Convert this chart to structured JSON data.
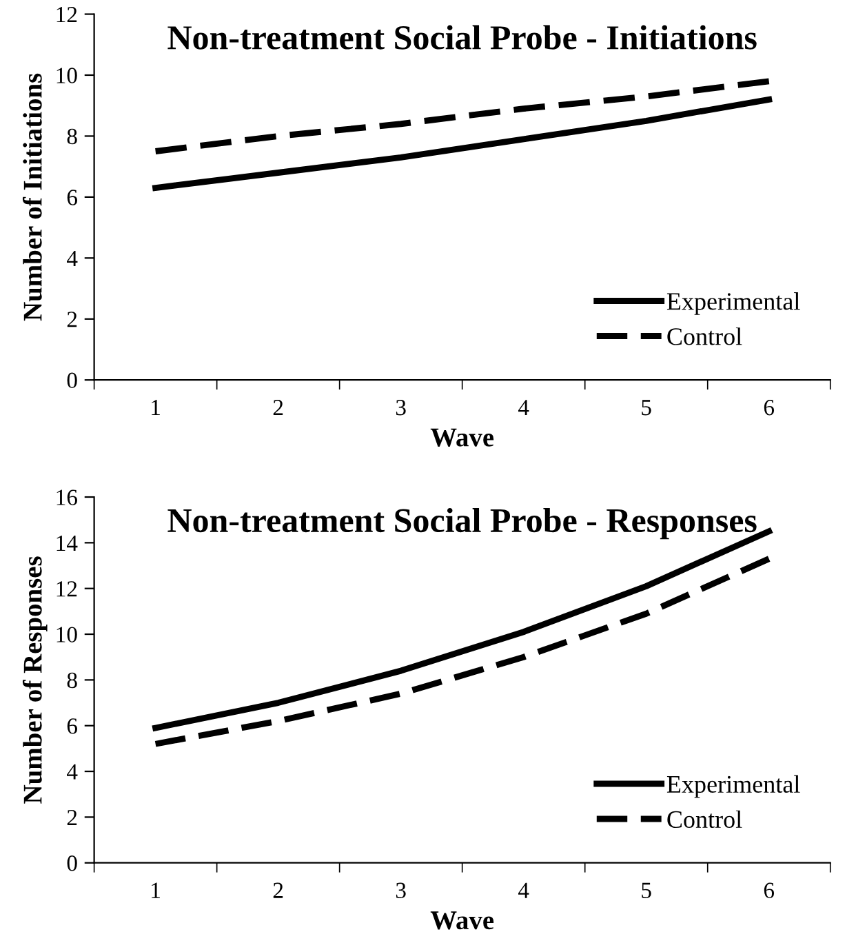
{
  "chart_data": [
    {
      "type": "line",
      "title": "Non-treatment Social Probe - Initiations",
      "xlabel": "Wave",
      "ylabel": "Number of Initiations",
      "categories": [
        "1",
        "2",
        "3",
        "4",
        "5",
        "6"
      ],
      "series": [
        {
          "name": "Experimental",
          "color": "#000000",
          "line_style": "solid",
          "values": [
            6.3,
            6.8,
            7.3,
            7.9,
            8.5,
            9.2
          ]
        },
        {
          "name": "Control",
          "color": "#000000",
          "line_style": "dashed",
          "values": [
            7.5,
            8.0,
            8.4,
            8.9,
            9.3,
            9.8
          ]
        }
      ],
      "ylim": [
        0,
        12
      ],
      "yticks": [
        0,
        2,
        4,
        6,
        8,
        10,
        12
      ],
      "grid": false,
      "legend": "bottom right",
      "marker": "none"
    },
    {
      "type": "line",
      "title": "Non-treatment Social Probe - Responses",
      "xlabel": "Wave",
      "ylabel": "Number of Responses",
      "categories": [
        "1",
        "2",
        "3",
        "4",
        "5",
        "6"
      ],
      "series": [
        {
          "name": "Experimental",
          "color": "#000000",
          "line_style": "solid",
          "values": [
            5.9,
            7.0,
            8.4,
            10.1,
            12.1,
            14.5
          ]
        },
        {
          "name": "Control",
          "color": "#000000",
          "line_style": "dashed",
          "values": [
            5.2,
            6.2,
            7.4,
            9.0,
            10.9,
            13.3
          ]
        }
      ],
      "ylim": [
        0,
        16
      ],
      "yticks": [
        0,
        2,
        4,
        6,
        8,
        10,
        12,
        14,
        16
      ],
      "grid": false,
      "legend": "bottom right",
      "marker": "none"
    }
  ]
}
